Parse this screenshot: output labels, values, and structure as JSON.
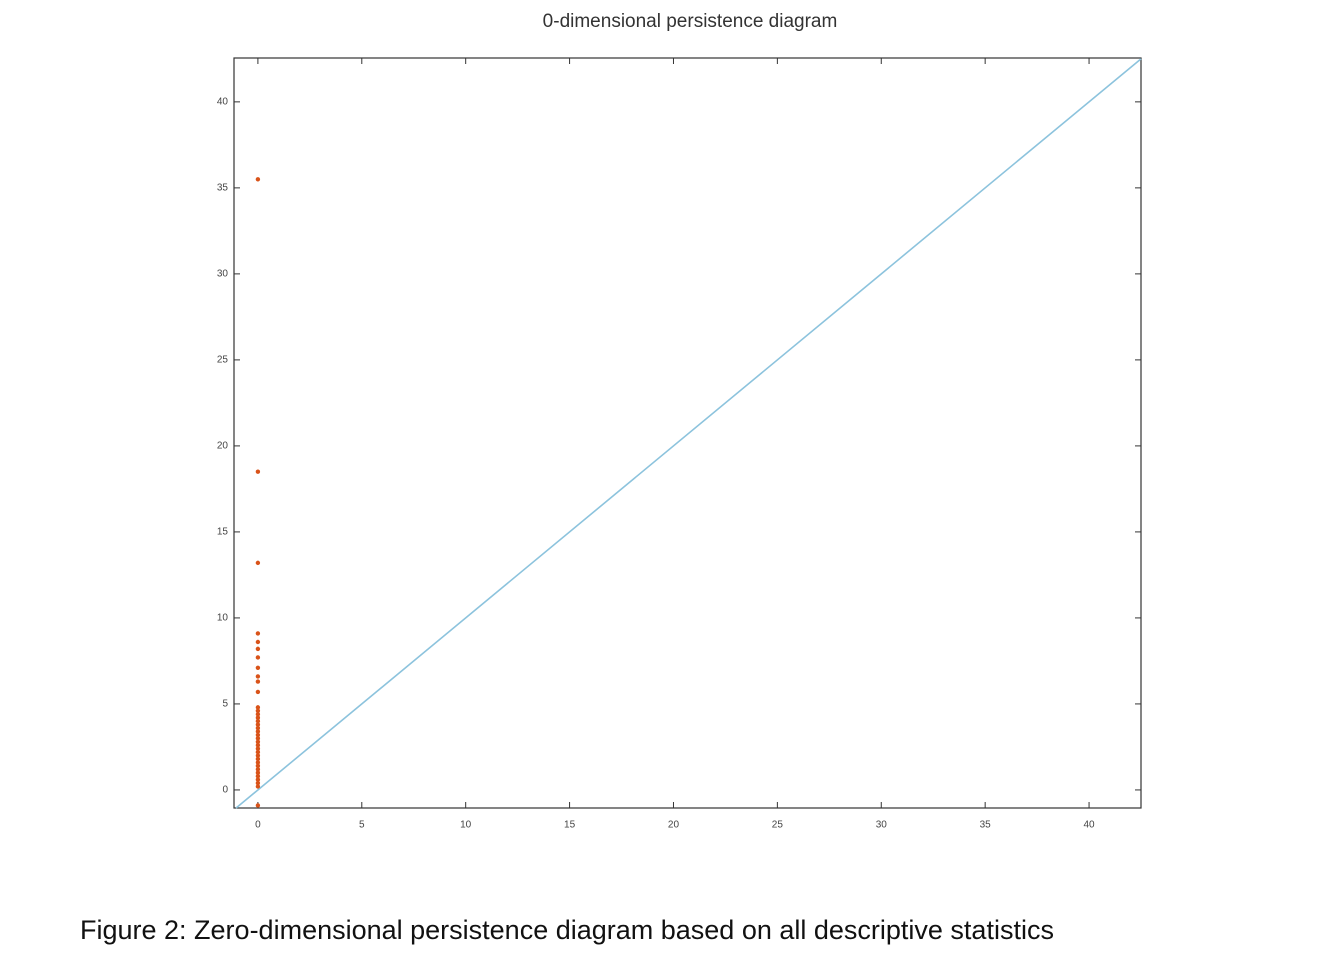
{
  "chart_data": {
    "type": "scatter",
    "title": "0-dimensional persistence diagram",
    "x": [
      0,
      0,
      0,
      0,
      0,
      0,
      0,
      0,
      0,
      0,
      0,
      0,
      0,
      0,
      0,
      0,
      0,
      0,
      0,
      0,
      0,
      0,
      0,
      0,
      0,
      0,
      0,
      0,
      0,
      0,
      0,
      0,
      0,
      0,
      0,
      0
    ],
    "values": [
      35.5,
      18.5,
      13.2,
      9.1,
      8.6,
      8.2,
      7.7,
      7.1,
      6.6,
      6.3,
      5.7,
      4.8,
      4.6,
      4.4,
      4.2,
      4.0,
      3.8,
      3.6,
      3.4,
      3.2,
      3.0,
      2.8,
      2.6,
      2.4,
      2.2,
      2.0,
      1.8,
      1.6,
      1.4,
      1.2,
      1.0,
      0.8,
      0.6,
      0.4,
      0.2,
      -0.9
    ],
    "color": "#d95319",
    "diagonal": true,
    "diagonal_color": "#8cc3dd",
    "xlim": [
      -1.15,
      42.5
    ],
    "ylim": [
      -1.05,
      42.55
    ],
    "xticks": [
      0,
      5,
      10,
      15,
      20,
      25,
      30,
      35,
      40
    ],
    "yticks": [
      0,
      5,
      10,
      15,
      20,
      25,
      30,
      35,
      40
    ]
  },
  "caption": "Figure 2: Zero-dimensional persistence diagram based on all descriptive statistics"
}
